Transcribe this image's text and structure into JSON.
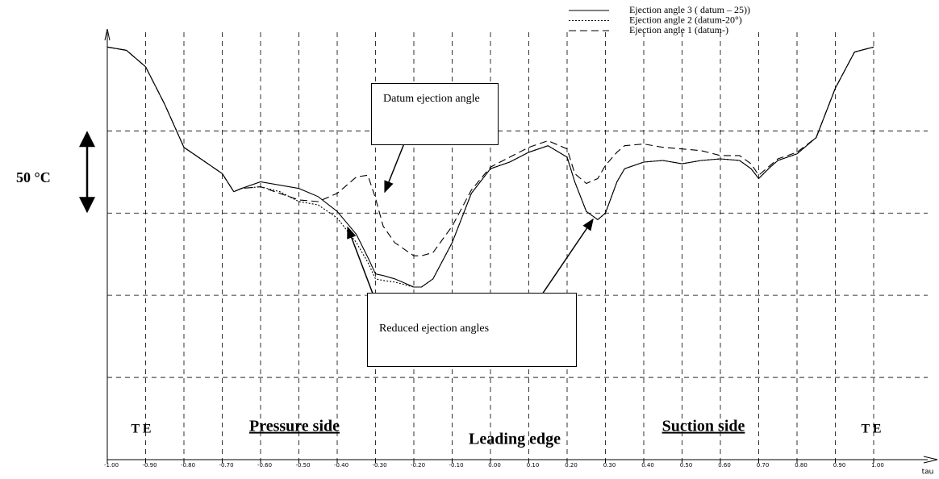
{
  "chart_data": {
    "type": "line",
    "x_label": "tau",
    "scale_label": "50 °C",
    "x": [
      -1,
      -0.95,
      -0.9,
      -0.85,
      -0.8,
      -0.75,
      -0.7,
      -0.67,
      -0.65,
      -0.6,
      -0.55,
      -0.5,
      -0.45,
      -0.4,
      -0.35,
      -0.32,
      -0.3,
      -0.28,
      -0.25,
      -0.2,
      -0.18,
      -0.15,
      -0.1,
      -0.05,
      0,
      0.05,
      0.1,
      0.15,
      0.2,
      0.22,
      0.25,
      0.28,
      0.3,
      0.33,
      0.35,
      0.4,
      0.45,
      0.5,
      0.55,
      0.6,
      0.65,
      0.68,
      0.7,
      0.73,
      0.75,
      0.8,
      0.85,
      0.9,
      0.95,
      1
    ],
    "series": [
      {
        "name": "Ejection angle 3 ( datum – 25))",
        "color": "#000000",
        "dash": "solid",
        "values": [
          251,
          249,
          239,
          216,
          190,
          182,
          174,
          163,
          165,
          169,
          167,
          165,
          160,
          151,
          137,
          123,
          113,
          112,
          110,
          105,
          105,
          110,
          132,
          162,
          177,
          181,
          187,
          191,
          184,
          169,
          151,
          146,
          150,
          169,
          177,
          181,
          182,
          180,
          182,
          183,
          182,
          177,
          171,
          178,
          182,
          186,
          196,
          226,
          248,
          251
        ]
      },
      {
        "name": "Ejection angle 2 (datum-20°)",
        "color": "#000000",
        "dash": "dotted",
        "values": [
          251,
          249,
          239,
          216,
          190,
          182,
          174,
          163,
          165,
          166,
          163,
          157,
          155,
          147,
          132,
          120,
          110,
          109,
          108,
          105,
          105,
          110,
          132,
          162,
          177,
          181,
          187,
          191,
          184,
          169,
          151,
          146,
          150,
          169,
          177,
          181,
          182,
          180,
          182,
          183,
          182,
          177,
          171,
          178,
          182,
          186,
          196,
          226,
          248,
          251
        ]
      },
      {
        "name": "Ejection angle 1 (datum-)",
        "color": "#000000",
        "dash": "dashed",
        "values": [
          251,
          249,
          239,
          216,
          190,
          182,
          174,
          163,
          165,
          166,
          162,
          158,
          157,
          162,
          172,
          173,
          159,
          142,
          132,
          124,
          124,
          126,
          142,
          164,
          178,
          184,
          190,
          194,
          189,
          174,
          168,
          171,
          179,
          187,
          191,
          192,
          190,
          189,
          188,
          185,
          185,
          180,
          173,
          179,
          183,
          187,
          196,
          226,
          248,
          251
        ]
      }
    ],
    "xlim": [
      -1,
      1
    ],
    "xticks": [
      {
        "value": -1,
        "label": "-1.00"
      },
      {
        "value": -0.9,
        "label": "-0.90"
      },
      {
        "value": -0.8,
        "label": "-0.80"
      },
      {
        "value": -0.7,
        "label": "-0.70"
      },
      {
        "value": -0.6,
        "label": "-0.60"
      },
      {
        "value": -0.5,
        "label": "-0.50"
      },
      {
        "value": -0.4,
        "label": "-0.40"
      },
      {
        "value": -0.3,
        "label": "-0.30"
      },
      {
        "value": -0.2,
        "label": "-0.20"
      },
      {
        "value": -0.1,
        "label": "-0.10"
      },
      {
        "value": 0,
        "label": "0.00"
      },
      {
        "value": 0.1,
        "label": "0.10"
      },
      {
        "value": 0.2,
        "label": "0.20"
      },
      {
        "value": 0.3,
        "label": "0.30"
      },
      {
        "value": 0.4,
        "label": "0.40"
      },
      {
        "value": 0.5,
        "label": "0.50"
      },
      {
        "value": 0.6,
        "label": "0.60"
      },
      {
        "value": 0.7,
        "label": "0.70"
      },
      {
        "value": 0.8,
        "label": "0.80"
      },
      {
        "value": 0.9,
        "label": "0.90"
      },
      {
        "value": 1,
        "label": "1.00"
      }
    ],
    "ylim": [
      0,
      260
    ],
    "yticks": [
      50,
      100,
      150,
      200
    ],
    "grid": true,
    "legend": "top-right",
    "annotations": {
      "datum": "Datum ejection angle",
      "reduced": "Reduced ejection angles"
    },
    "regions": {
      "te_left": "T E",
      "pressure": "Pressure side",
      "leading": "Leading edge",
      "suction": "Suction side",
      "te_right": "T E"
    }
  }
}
